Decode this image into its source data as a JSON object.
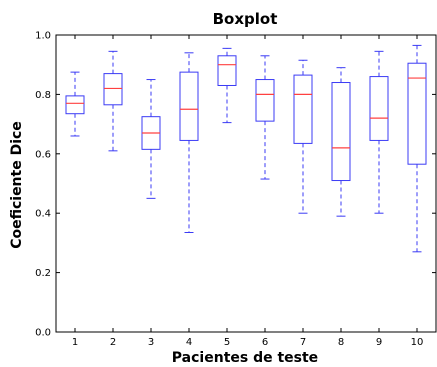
{
  "chart_data": {
    "type": "boxplot",
    "title": "Boxplot",
    "xlabel": "Pacientes de teste",
    "ylabel": "Coeficiente Dice",
    "ylim": [
      0.0,
      1.0
    ],
    "yticks": [
      "0.0",
      "0.2",
      "0.4",
      "0.6",
      "0.8",
      "1.0"
    ],
    "categories": [
      "1",
      "2",
      "3",
      "4",
      "5",
      "6",
      "7",
      "8",
      "9",
      "10"
    ],
    "boxes": [
      {
        "category": "1",
        "whislo": 0.66,
        "q1": 0.735,
        "median": 0.77,
        "q3": 0.795,
        "whishi": 0.875
      },
      {
        "category": "2",
        "whislo": 0.61,
        "q1": 0.765,
        "median": 0.82,
        "q3": 0.87,
        "whishi": 0.945
      },
      {
        "category": "3",
        "whislo": 0.45,
        "q1": 0.615,
        "median": 0.67,
        "q3": 0.725,
        "whishi": 0.85
      },
      {
        "category": "4",
        "whislo": 0.335,
        "q1": 0.645,
        "median": 0.75,
        "q3": 0.875,
        "whishi": 0.94
      },
      {
        "category": "5",
        "whislo": 0.705,
        "q1": 0.83,
        "median": 0.9,
        "q3": 0.93,
        "whishi": 0.955
      },
      {
        "category": "6",
        "whislo": 0.515,
        "q1": 0.71,
        "median": 0.8,
        "q3": 0.85,
        "whishi": 0.93
      },
      {
        "category": "7",
        "whislo": 0.4,
        "q1": 0.635,
        "median": 0.8,
        "q3": 0.865,
        "whishi": 0.915
      },
      {
        "category": "8",
        "whislo": 0.39,
        "q1": 0.51,
        "median": 0.62,
        "q3": 0.84,
        "whishi": 0.89
      },
      {
        "category": "9",
        "whislo": 0.4,
        "q1": 0.645,
        "median": 0.72,
        "q3": 0.86,
        "whishi": 0.945
      },
      {
        "category": "10",
        "whislo": 0.27,
        "q1": 0.565,
        "median": 0.855,
        "q3": 0.905,
        "whishi": 0.965
      }
    ],
    "colors": {
      "box": "#3b3bf5",
      "median": "#ff4040",
      "axis": "#000000",
      "background": "#ffffff"
    },
    "grid": false
  }
}
